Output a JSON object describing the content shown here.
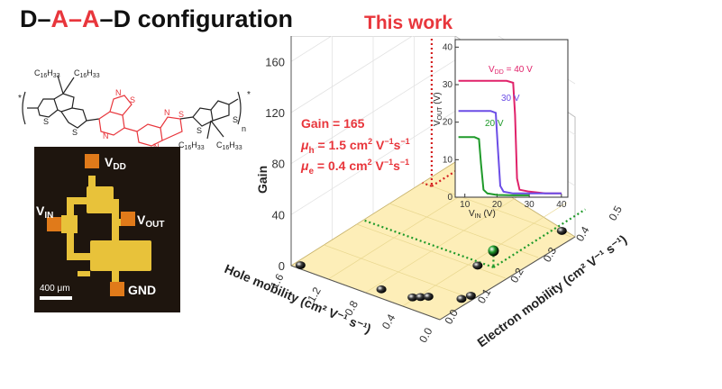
{
  "title": {
    "part1": "D–",
    "a1": "A",
    "dash2": "–",
    "a2": "A",
    "part3": "–D configuration"
  },
  "highlight_label": "This work",
  "molecule": {
    "left_chain_1": "C",
    "left_chain_1_sub": "16",
    "left_chain_1_rest": "H",
    "left_chain_1_sub2": "33",
    "left_chain_2": "C",
    "left_chain_2_sub": "16",
    "left_chain_2_rest": "H",
    "left_chain_2_sub2": "33",
    "right_chain_1": "C",
    "right_chain_1_sub": "16",
    "right_chain_1_rest": "H",
    "right_chain_1_sub2": "33",
    "right_chain_2": "C",
    "right_chain_2_sub": "16",
    "right_chain_2_rest": "H",
    "right_chain_2_sub2": "33",
    "atom_s": "S",
    "atom_n": "N",
    "repeat_n": "n",
    "end_star": "*"
  },
  "device": {
    "vdd": "V",
    "vdd_sub": "DD",
    "vin": "V",
    "vin_sub": "IN",
    "vout": "V",
    "vout_sub": "OUT",
    "gnd": "GND",
    "scale_bar": "400 μm"
  },
  "chart_data": [
    {
      "type": "scatter",
      "title": "",
      "xlabel": "Hole mobility (cm² V⁻¹ s⁻¹)",
      "ylabel": "Electron mobility (cm² V⁻¹ s⁻¹)",
      "zlabel": "Gain",
      "x_ticks": [
        "1.6",
        "1.2",
        "0.8",
        "0.4",
        "0.0"
      ],
      "y_ticks": [
        "0.0",
        "0.1",
        "0.2",
        "0.3",
        "0.4",
        "0.5"
      ],
      "z_ticks": [
        "0",
        "40",
        "80",
        "120",
        "160"
      ],
      "xlim": [
        1.6,
        0.0
      ],
      "ylim": [
        0.0,
        0.5
      ],
      "zlim": [
        0,
        180
      ],
      "points": [
        {
          "hole": 1.5,
          "electron": 0.4,
          "gain": 165,
          "color": "#d42020",
          "highlight": true
        },
        {
          "hole": 0.2,
          "electron": 0.22,
          "gain": 13,
          "color": "#1f9a2a",
          "highlight": true
        },
        {
          "hole": 1.5,
          "electron": 0.0,
          "gain": 3,
          "color": "#3a3a3a"
        },
        {
          "hole": 0.3,
          "electron": 0.2,
          "gain": 2,
          "color": "#3a3a3a"
        },
        {
          "hole": 0.7,
          "electron": 0.02,
          "gain": 2,
          "color": "#3a3a3a"
        },
        {
          "hole": 0.4,
          "electron": 0.03,
          "gain": 2,
          "color": "#3a3a3a"
        },
        {
          "hole": 0.35,
          "electron": 0.04,
          "gain": 2,
          "color": "#3a3a3a"
        },
        {
          "hole": 0.3,
          "electron": 0.05,
          "gain": 2,
          "color": "#3a3a3a"
        },
        {
          "hole": 0.05,
          "electron": 0.08,
          "gain": 2,
          "color": "#3a3a3a"
        },
        {
          "hole": 0.02,
          "electron": 0.1,
          "gain": 2,
          "color": "#3a3a3a"
        },
        {
          "hole": 0.1,
          "electron": 0.4,
          "gain": 2,
          "color": "#3a3a3a"
        }
      ],
      "annotation": {
        "gain_text": "Gain = 165",
        "mu_h_sym": "μ",
        "mu_h_sub": "h",
        "mu_h_val": " = 1.5 cm",
        "mu_h_exp": "2",
        "mu_h_unit": " V",
        "mu_h_exp2": "−1",
        "mu_h_unit2": "s",
        "mu_h_exp3": "−1",
        "mu_e_sym": "μ",
        "mu_e_sub": "e",
        "mu_e_val": " = 0.4 cm",
        "mu_e_exp": "2",
        "mu_e_unit": " V",
        "mu_e_exp2": "−1",
        "mu_e_unit2": "s",
        "mu_e_exp3": "−1",
        "color": "#e8363c"
      },
      "grid": true
    },
    {
      "type": "line",
      "title": "",
      "xlabel": "V",
      "xlabel_sub": "IN",
      "xlabel_unit": " (V)",
      "ylabel": "V",
      "ylabel_sub": "OUT",
      "ylabel_unit": " (V)",
      "x_ticks": [
        "10",
        "20",
        "30",
        "40"
      ],
      "y_ticks": [
        "0",
        "10",
        "20",
        "30",
        "40"
      ],
      "xlim": [
        7,
        42
      ],
      "ylim": [
        0,
        42
      ],
      "series": [
        {
          "label": "V",
          "label_sub": "DD",
          "label_rest": " = 40 V",
          "color": "#e0226a",
          "x": [
            8,
            12,
            16,
            20,
            23,
            25,
            25.6,
            26.2,
            27,
            30,
            35,
            40
          ],
          "y": [
            31,
            31,
            31,
            31,
            31,
            30.5,
            22,
            5,
            2,
            1.5,
            1,
            1
          ]
        },
        {
          "label": "30 V",
          "color": "#6b4de6",
          "x": [
            8,
            12,
            16,
            18,
            19.6,
            20.2,
            21,
            22,
            25,
            30,
            35,
            40
          ],
          "y": [
            23,
            23,
            23,
            23,
            22.5,
            14,
            3,
            1.5,
            1,
            1,
            1,
            1
          ]
        },
        {
          "label": "20 V",
          "color": "#1f9a2a",
          "x": [
            8,
            10,
            13,
            14.4,
            15,
            15.8,
            17,
            20,
            25,
            30
          ],
          "y": [
            16,
            16,
            16,
            15.5,
            9,
            2,
            1,
            0.6,
            0.5,
            0.5
          ]
        }
      ]
    }
  ]
}
